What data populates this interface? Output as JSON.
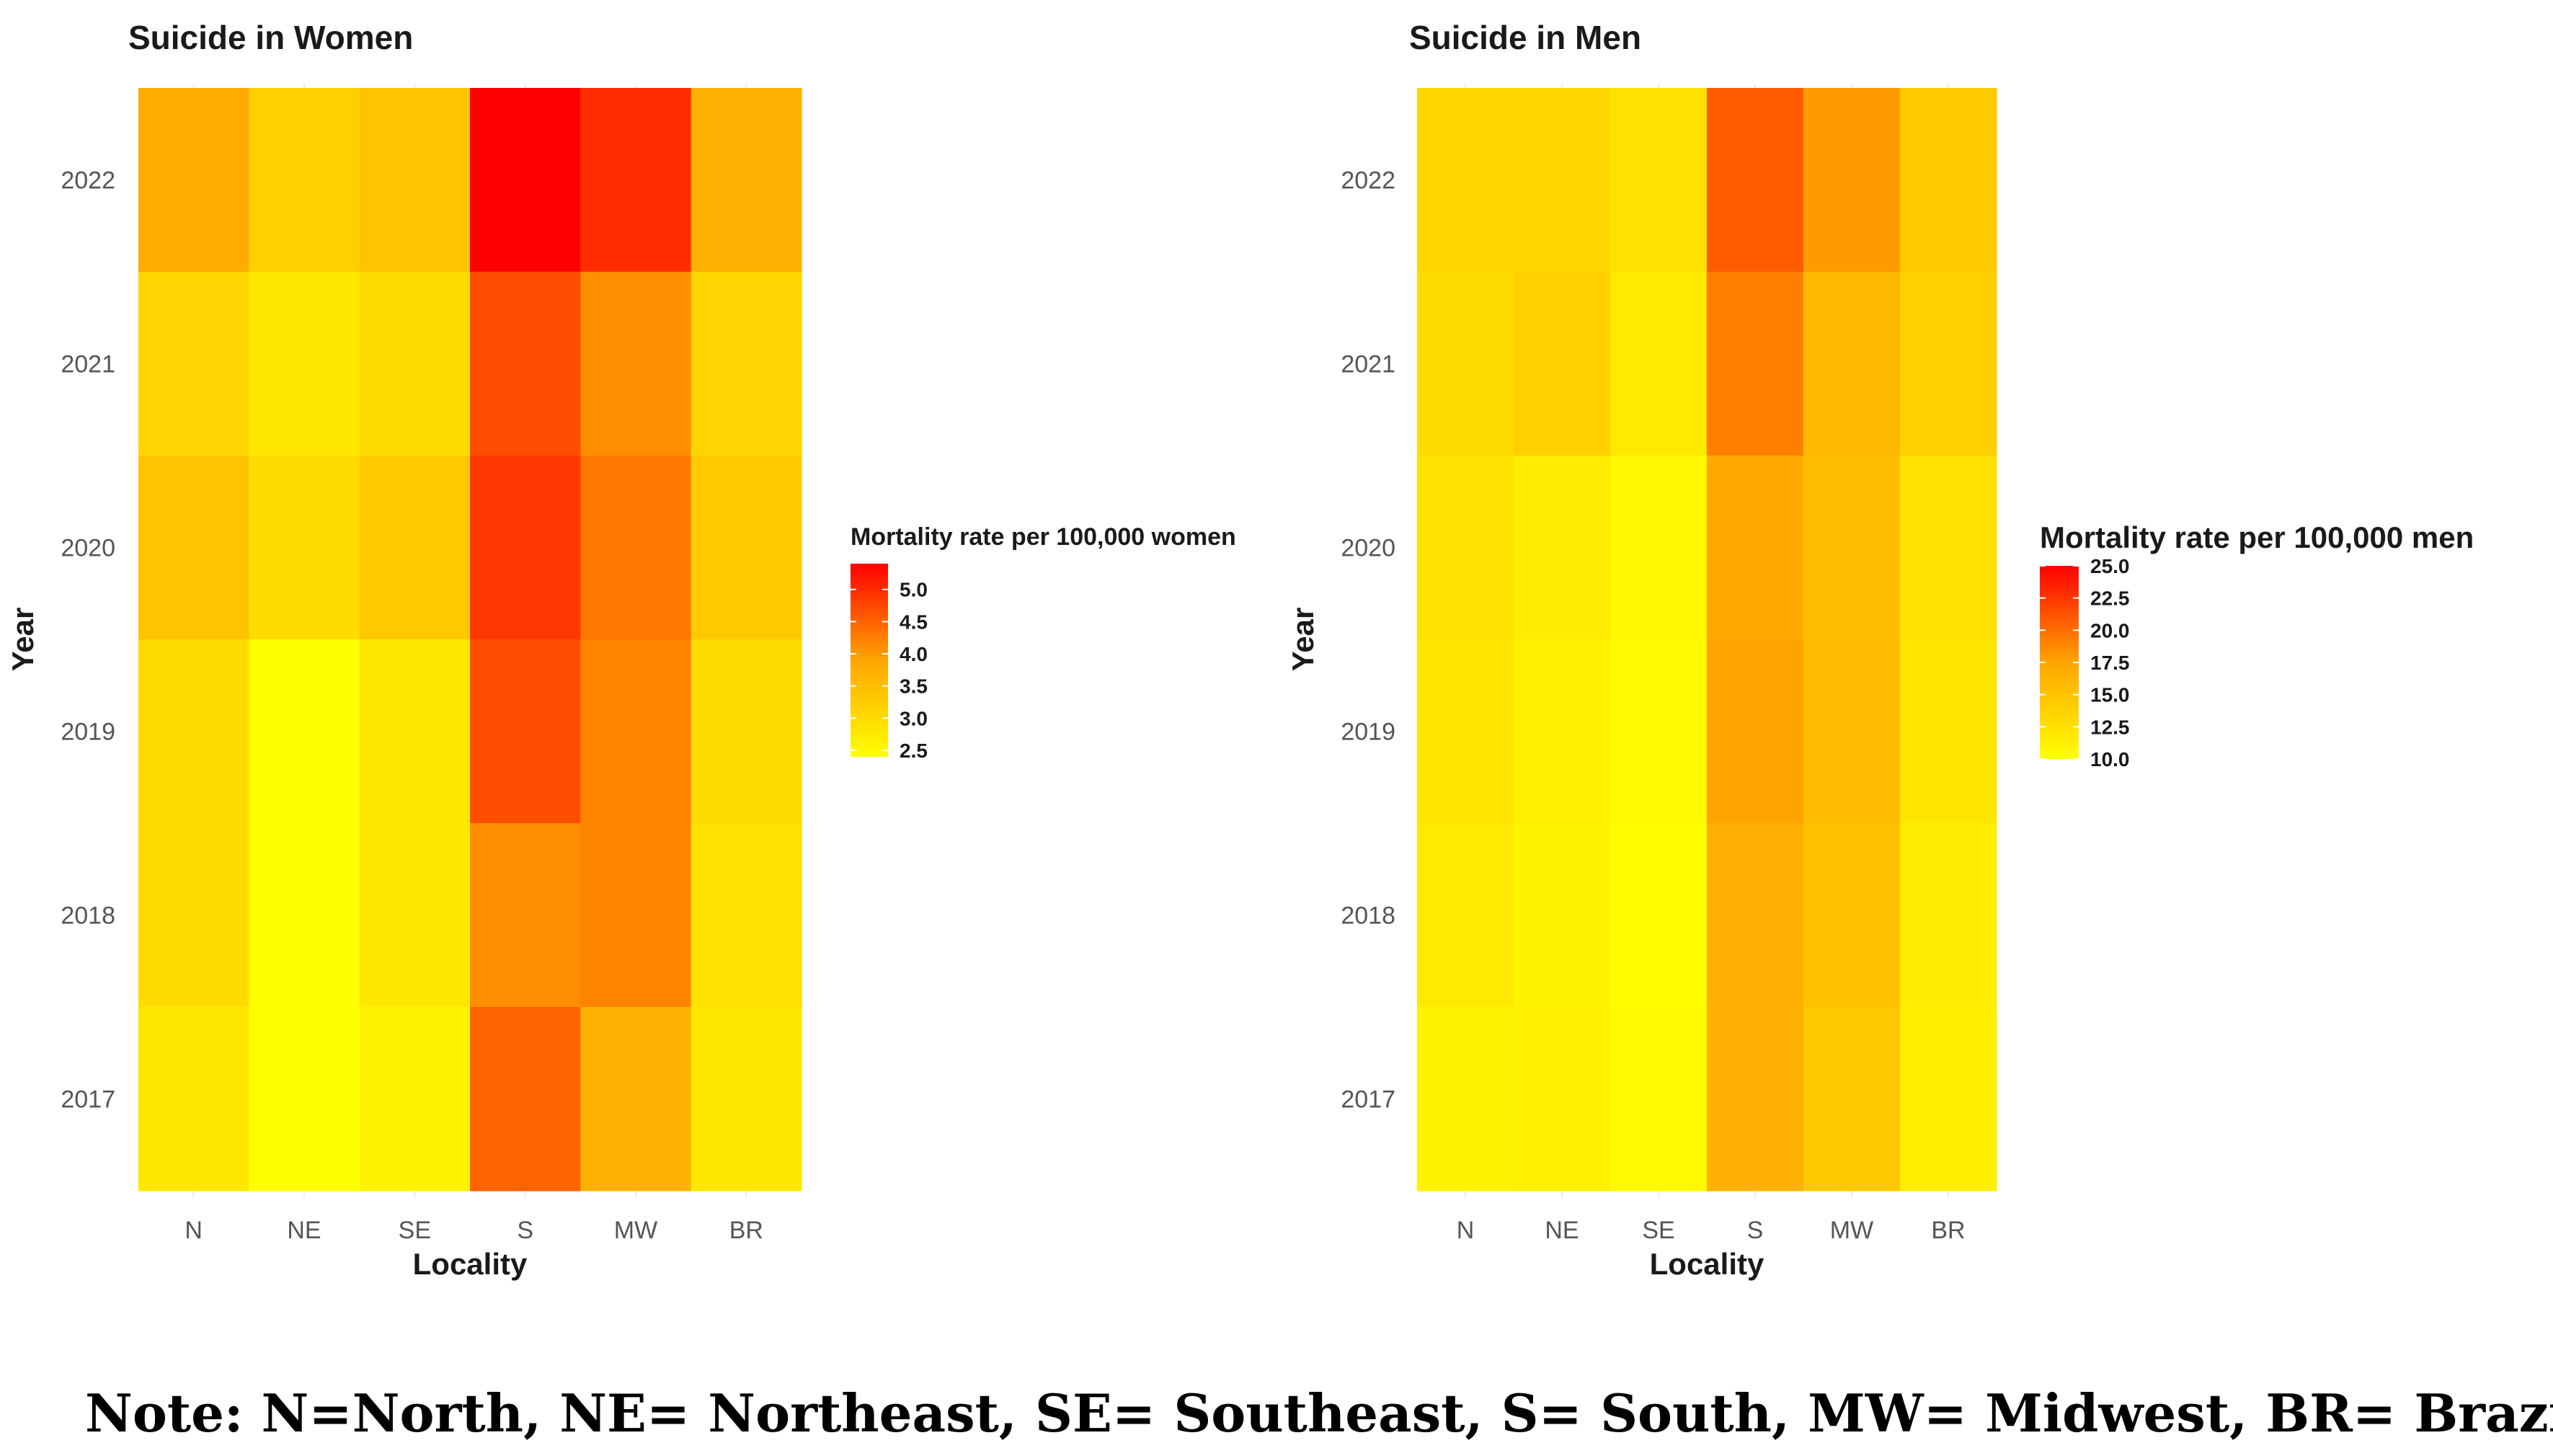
{
  "chart_data": [
    {
      "type": "heatmap",
      "title": "Suicide in Women",
      "xlabel": "Locality",
      "ylabel": "Year",
      "x_categories": [
        "N",
        "NE",
        "SE",
        "S",
        "MW",
        "BR"
      ],
      "y_categories": [
        "2022",
        "2021",
        "2020",
        "2019",
        "2018",
        "2017"
      ],
      "values": [
        [
          3.8,
          3.2,
          3.4,
          5.4,
          5.0,
          3.7
        ],
        [
          3.1,
          2.8,
          3.0,
          4.7,
          4.1,
          3.1
        ],
        [
          3.4,
          3.0,
          3.3,
          4.9,
          4.3,
          3.3
        ],
        [
          3.0,
          2.4,
          2.8,
          4.7,
          4.2,
          3.0
        ],
        [
          3.0,
          2.4,
          2.8,
          4.1,
          4.2,
          2.9
        ],
        [
          2.8,
          2.4,
          2.6,
          4.5,
          3.7,
          2.8
        ]
      ],
      "legend": {
        "title": "Mortality rate per 100,000 women",
        "ticks": [
          "5.0",
          "4.5",
          "4.0",
          "3.5",
          "3.0",
          "2.5"
        ],
        "range": [
          2.4,
          5.4
        ],
        "position": "right"
      },
      "colors": {
        "low": "#ffff00",
        "mid": "#ffa500",
        "high": "#ff0000"
      }
    },
    {
      "type": "heatmap",
      "title": "Suicide in Men",
      "xlabel": "Locality",
      "ylabel": "Year",
      "x_categories": [
        "N",
        "NE",
        "SE",
        "S",
        "MW",
        "BR"
      ],
      "y_categories": [
        "2022",
        "2021",
        "2020",
        "2019",
        "2018",
        "2017"
      ],
      "values": [
        [
          13.4,
          13.4,
          12.5,
          20.8,
          18.0,
          14.5
        ],
        [
          13.0,
          14.0,
          11.8,
          19.2,
          15.8,
          14.0
        ],
        [
          12.4,
          11.6,
          10.6,
          17.2,
          15.4,
          12.4
        ],
        [
          12.2,
          11.2,
          10.4,
          17.6,
          15.6,
          12.2
        ],
        [
          11.8,
          11.0,
          10.2,
          16.6,
          15.2,
          11.6
        ],
        [
          11.0,
          11.2,
          10.4,
          16.6,
          14.6,
          11.4
        ]
      ],
      "legend": {
        "title": "Mortality rate per 100,000 men",
        "ticks": [
          "25.0",
          "22.5",
          "20.0",
          "17.5",
          "15.0",
          "12.5",
          "10.0"
        ],
        "range": [
          10.0,
          25.0
        ],
        "position": "right"
      },
      "colors": {
        "low": "#ffff00",
        "mid": "#ffa500",
        "high": "#ff0000"
      }
    }
  ],
  "note": "Note: N=North, NE= Northeast, SE= Southeast, S= South, MW= Midwest, BR= Brazil."
}
